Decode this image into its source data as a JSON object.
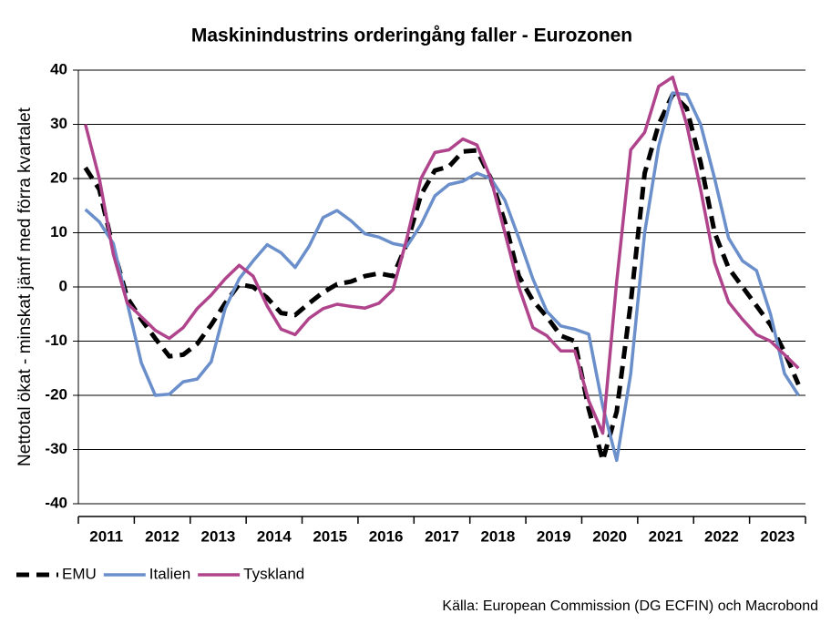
{
  "chart_data": {
    "type": "line",
    "title": "Maskinindustrins orderingång faller - Eurozonen",
    "y_label": "Nettotal ökat - minskat jämf med förra kvartalet",
    "source": "Källa: European Commission (DG ECFIN) och Macrobond",
    "categories": [
      "2011",
      null,
      null,
      null,
      "2012",
      null,
      null,
      null,
      "2013",
      null,
      null,
      null,
      "2014",
      null,
      null,
      null,
      "2015",
      null,
      null,
      null,
      "2016",
      null,
      null,
      null,
      "2017",
      null,
      null,
      null,
      "2018",
      null,
      null,
      null,
      "2019",
      null,
      null,
      null,
      "2020",
      null,
      null,
      null,
      "2021",
      null,
      null,
      null,
      "2022",
      null,
      null,
      null,
      "2023",
      null,
      null,
      null
    ],
    "ylim": [
      -40,
      40
    ],
    "yticks": [
      -40,
      -30,
      -20,
      -10,
      0,
      10,
      20,
      30,
      40
    ],
    "grid": true,
    "legend": "bottom-left",
    "series": [
      {
        "name": "EMU",
        "color": "#000000",
        "dashed": true,
        "values": [
          22,
          18,
          7,
          -2,
          -6,
          -9.5,
          -12.8,
          -12.5,
          -10.5,
          -7,
          -3,
          0.5,
          0,
          -2,
          -4.8,
          -5.2,
          -3,
          -1,
          0.5,
          1,
          2,
          2.5,
          2,
          8,
          17,
          21.5,
          22.2,
          25,
          25.2,
          20,
          12,
          2,
          -2.5,
          -5.5,
          -9,
          -10,
          -22.5,
          -32,
          -23,
          -3,
          21,
          30,
          35.5,
          33,
          23,
          10,
          3.5,
          0,
          -3.5,
          -7,
          -12,
          -18
        ]
      },
      {
        "name": "Italien",
        "color": "#6a8fcb",
        "values": [
          14.3,
          12,
          8,
          -3,
          -14,
          -20,
          -19.8,
          -17.5,
          -17,
          -13.8,
          -4,
          1.5,
          4.8,
          7.8,
          6.3,
          3.6,
          7.5,
          12.8,
          14.1,
          12.2,
          9.8,
          9.2,
          8,
          7.5,
          11.5,
          16.8,
          18.9,
          19.5,
          21,
          20,
          16,
          9,
          1.5,
          -4.5,
          -7.2,
          -7.8,
          -8.7,
          -22,
          -32,
          -16,
          10,
          26,
          35.8,
          35.5,
          30,
          20,
          9,
          4.8,
          3,
          -5,
          -16,
          -20
        ]
      },
      {
        "name": "Tyskland",
        "color": "#b0448c",
        "values": [
          30,
          20,
          6,
          -3,
          -5.5,
          -8,
          -9.5,
          -7.5,
          -4,
          -1.5,
          1.5,
          4,
          2,
          -3.5,
          -7.8,
          -8.8,
          -5.8,
          -4,
          -3.2,
          -3.6,
          -3.9,
          -3,
          -0.5,
          9,
          20,
          24.8,
          25.3,
          27.3,
          26.2,
          20,
          10,
          0,
          -7.5,
          -9,
          -11.8,
          -11.8,
          -21,
          -27,
          1,
          25.3,
          28.5,
          37,
          38.7,
          30,
          18,
          4.5,
          -2.8,
          -6,
          -8.8,
          -10,
          -12.5,
          -15
        ]
      }
    ]
  }
}
